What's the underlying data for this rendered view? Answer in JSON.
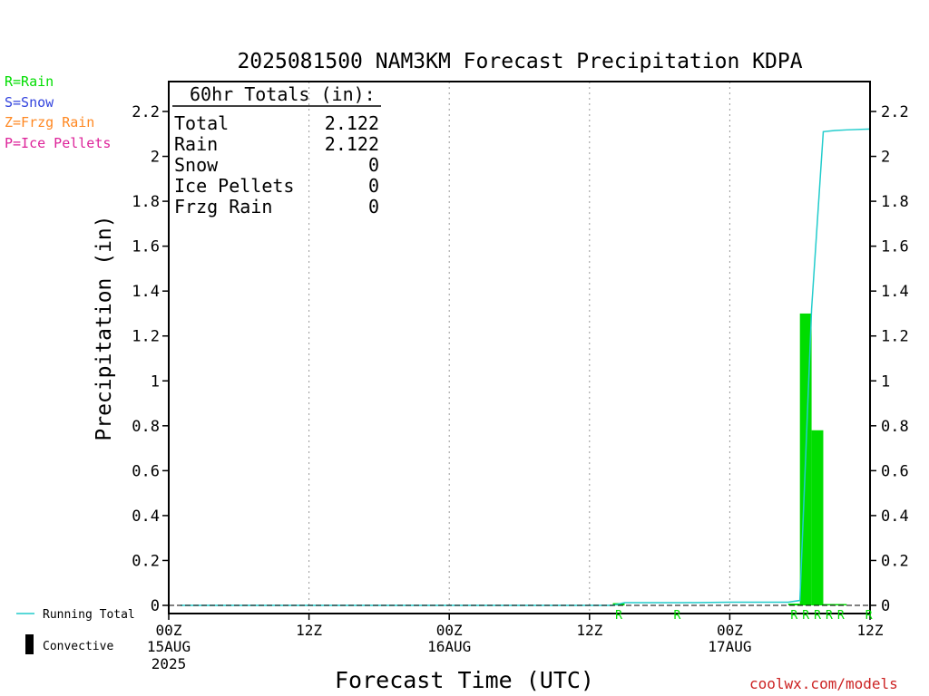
{
  "legend_types": [
    {
      "code_label": "R=Rain",
      "color": "#00dd00"
    },
    {
      "code_label": "S=Snow",
      "color": "#3344dd"
    },
    {
      "code_label": "Z=Frzg Rain",
      "color": "#ff8822"
    },
    {
      "code_label": "P=Ice Pellets",
      "color": "#dd2299"
    }
  ],
  "credit": "coolwx.com/models",
  "chart_data": {
    "type": "bar",
    "title": "2025081500 NAM3KM Forecast Precipitation KDPA",
    "xlabel": "Forecast Time (UTC)",
    "ylabel": "Precipitation (in)",
    "ylim": [
      0,
      2.3
    ],
    "y_ticks": [
      "0",
      "0.2",
      "0.4",
      "0.6",
      "0.8",
      "1",
      "1.2",
      "1.4",
      "1.6",
      "1.8",
      "2",
      "2.2"
    ],
    "y_tick_values": [
      0,
      0.2,
      0.4,
      0.6,
      0.8,
      1.0,
      1.2,
      1.4,
      1.6,
      1.8,
      2.0,
      2.2
    ],
    "xlim": [
      0,
      60
    ],
    "x_ticks": [
      {
        "hour": 0,
        "label": "00Z",
        "date": "15AUG",
        "year": "2025"
      },
      {
        "hour": 12,
        "label": "12Z",
        "date": "",
        "year": ""
      },
      {
        "hour": 24,
        "label": "00Z",
        "date": "16AUG",
        "year": ""
      },
      {
        "hour": 36,
        "label": "12Z",
        "date": "",
        "year": ""
      },
      {
        "hour": 48,
        "label": "00Z",
        "date": "17AUG",
        "year": ""
      },
      {
        "hour": 60,
        "label": "12Z",
        "date": "",
        "year": ""
      }
    ],
    "vertical_gridlines": [
      12,
      24,
      36,
      48
    ],
    "totals_box": {
      "header": "60hr Totals (in):",
      "rows": [
        {
          "label": "Total",
          "value": "2.122"
        },
        {
          "label": "Rain",
          "value": "2.122"
        },
        {
          "label": "Snow",
          "value": "0"
        },
        {
          "label": "Ice Pellets",
          "value": "0"
        },
        {
          "label": "Frzg Rain",
          "value": "0"
        }
      ]
    },
    "bars": [
      {
        "hour": 39,
        "value": 0.01
      },
      {
        "hour": 54,
        "value": 0.008
      },
      {
        "hour": 55,
        "value": 1.3
      },
      {
        "hour": 56,
        "value": 0.78
      },
      {
        "hour": 57,
        "value": 0.005
      },
      {
        "hour": 58,
        "value": 0.003
      }
    ],
    "bar_color": "#00dd00",
    "running_total": {
      "name": "Running Total",
      "color": "#22cccc",
      "x": [
        1,
        38,
        39,
        44,
        48,
        53,
        54,
        55,
        56,
        57,
        58,
        60
      ],
      "y": [
        0,
        0,
        0.012,
        0.012,
        0.014,
        0.014,
        0.022,
        1.32,
        2.11,
        2.115,
        2.118,
        2.122
      ]
    },
    "precip_type_markers": {
      "color": "#00dd00",
      "items": [
        {
          "hour": 39,
          "label": "R"
        },
        {
          "hour": 44,
          "label": "R"
        },
        {
          "hour": 54,
          "label": "R"
        },
        {
          "hour": 55,
          "label": "R"
        },
        {
          "hour": 56,
          "label": "R"
        },
        {
          "hour": 57,
          "label": "R"
        },
        {
          "hour": 58,
          "label": "R"
        },
        {
          "hour": 60,
          "label": "R"
        }
      ]
    },
    "series_legend": [
      {
        "name": "Running Total",
        "color": "#22cccc",
        "kind": "line"
      },
      {
        "name": "Convective",
        "color": "#000000",
        "kind": "box"
      }
    ]
  }
}
